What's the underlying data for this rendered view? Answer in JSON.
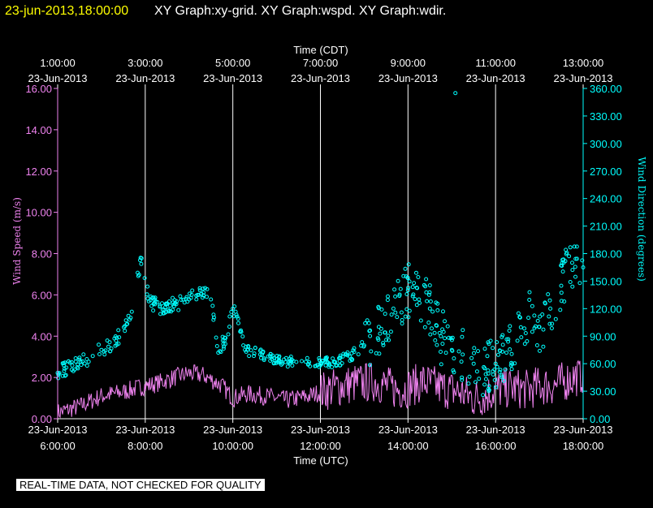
{
  "header": {
    "timestamp": "23-jun-2013,18:00:00",
    "graphs": "XY Graph:xy-grid.  XY Graph:wspd.  XY Graph:wdir."
  },
  "disclaimer": "REAL-TIME DATA, NOT CHECKED FOR QUALITY",
  "colors": {
    "background": "#000000",
    "timestamp": "#ffff00",
    "speed": "#ee82ee",
    "direction": "#00ffff",
    "grid": "#ffffff",
    "text": "#ffffff"
  },
  "chart_data": {
    "type": "scatter",
    "title": "",
    "x_top_label": "Time (CDT)",
    "x_bottom_label": "Time (UTC)",
    "y_left_label": "Wind Speed (m/s)",
    "y_right_label": "Wind Direction (degrees)",
    "x_range_utc": [
      "2013-06-23 06:00",
      "2013-06-23 18:00"
    ],
    "top_ticks": [
      {
        "time": "1:00:00",
        "date": "23-Jun-2013"
      },
      {
        "time": "3:00:00",
        "date": "23-Jun-2013"
      },
      {
        "time": "5:00:00",
        "date": "23-Jun-2013"
      },
      {
        "time": "7:00:00",
        "date": "23-Jun-2013"
      },
      {
        "time": "9:00:00",
        "date": "23-Jun-2013"
      },
      {
        "time": "11:00:00",
        "date": "23-Jun-2013"
      },
      {
        "time": "13:00:00",
        "date": "23-Jun-2013"
      }
    ],
    "bottom_ticks": [
      {
        "date": "23-Jun-2013",
        "time": "6:00:00"
      },
      {
        "date": "23-Jun-2013",
        "time": "8:00:00"
      },
      {
        "date": "23-Jun-2013",
        "time": "10:00:00"
      },
      {
        "date": "23-Jun-2013",
        "time": "12:00:00"
      },
      {
        "date": "23-Jun-2013",
        "time": "14:00:00"
      },
      {
        "date": "23-Jun-2013",
        "time": "16:00:00"
      },
      {
        "date": "23-Jun-2013",
        "time": "18:00:00"
      }
    ],
    "y_left_ticks": [
      "0.00",
      "2.00",
      "4.00",
      "6.00",
      "8.00",
      "10.00",
      "12.00",
      "14.00",
      "16.00"
    ],
    "y_left_range": [
      0,
      16
    ],
    "y_right_ticks": [
      "0.00",
      "30.00",
      "60.00",
      "90.00",
      "120.00",
      "150.00",
      "180.00",
      "210.00",
      "240.00",
      "270.00",
      "300.00",
      "330.00",
      "360.00"
    ],
    "y_right_range": [
      0,
      360
    ],
    "grid": true,
    "series": [
      {
        "series_type": "line",
        "axis": "left",
        "x_time_utc": [
          "06:00",
          "06:30",
          "07:00",
          "07:30",
          "07:50",
          "08:15",
          "08:40",
          "09:00",
          "09:20",
          "09:45",
          "10:00",
          "10:20",
          "10:45",
          "11:15",
          "11:45",
          "12:00",
          "12:20",
          "12:45",
          "13:15",
          "13:45",
          "14:00",
          "14:20",
          "14:45",
          "15:10",
          "15:30",
          "15:45",
          "16:00",
          "16:20",
          "16:45",
          "17:00",
          "17:20",
          "17:40",
          "18:00"
        ],
        "values": [
          0.3,
          0.6,
          1.1,
          1.3,
          1.5,
          1.7,
          2.0,
          2.2,
          2.1,
          1.6,
          1.0,
          1.2,
          1.1,
          0.9,
          1.1,
          1.3,
          1.5,
          1.7,
          1.8,
          1.4,
          1.5,
          1.8,
          1.5,
          1.3,
          1.0,
          1.1,
          1.4,
          1.5,
          1.4,
          1.6,
          1.6,
          1.9,
          2.2
        ]
      },
      {
        "series_type": "scatter",
        "axis": "right",
        "x_time_utc": [
          "06:00",
          "06:20",
          "06:40",
          "07:00",
          "07:20",
          "07:40",
          "07:55",
          "08:05",
          "08:20",
          "08:40",
          "09:00",
          "09:15",
          "09:30",
          "09:40",
          "09:50",
          "10:00",
          "10:10",
          "10:20",
          "10:40",
          "11:00",
          "11:20",
          "11:40",
          "12:00",
          "12:20",
          "12:40",
          "13:00",
          "13:20",
          "13:40",
          "14:00",
          "14:15",
          "14:30",
          "14:45",
          "15:00",
          "15:15",
          "15:30",
          "15:45",
          "16:00",
          "16:15",
          "16:30",
          "16:45",
          "17:00",
          "17:15",
          "17:30",
          "17:45",
          "18:00"
        ],
        "values": [
          50,
          58,
          65,
          75,
          85,
          110,
          175,
          128,
          122,
          125,
          130,
          140,
          130,
          72,
          88,
          120,
          95,
          75,
          70,
          65,
          62,
          62,
          60,
          62,
          68,
          80,
          100,
          120,
          140,
          130,
          120,
          90,
          75,
          70,
          60,
          55,
          60,
          72,
          85,
          110,
          100,
          120,
          145,
          170,
          165
        ]
      },
      {
        "series_type": "scatter",
        "axis": "right",
        "x_time_utc": [
          "15:05"
        ],
        "values": [
          355
        ]
      }
    ]
  }
}
